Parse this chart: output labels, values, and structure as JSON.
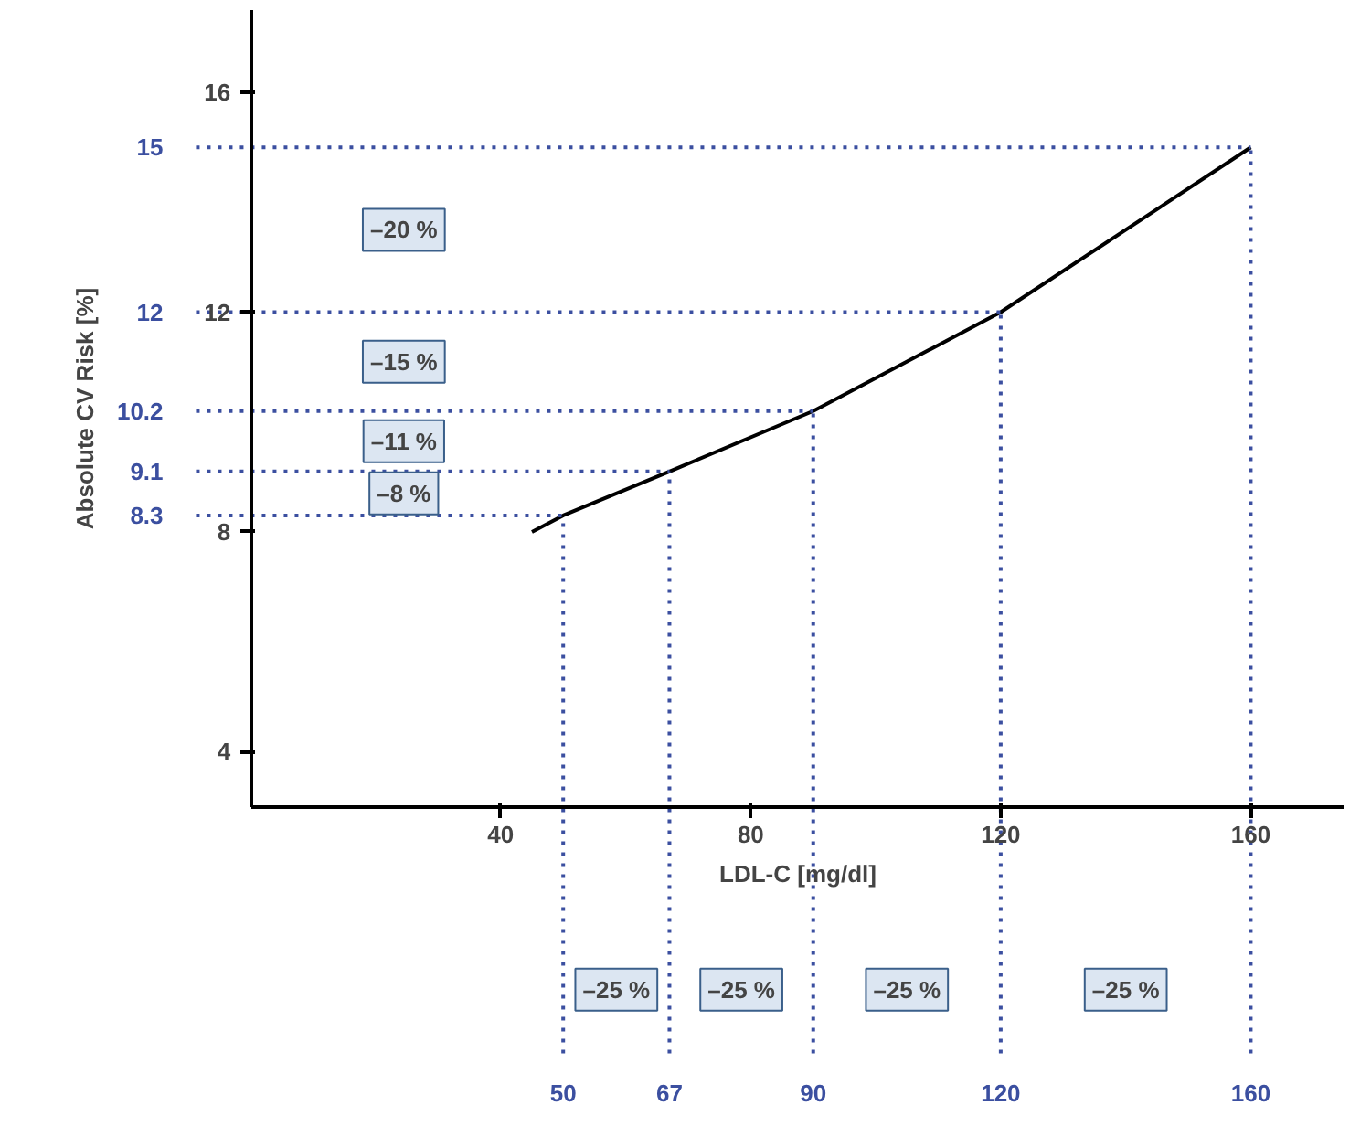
{
  "chart_data": {
    "type": "line",
    "xlabel": "LDL-C [mg/dl]",
    "ylabel": "Absolute CV Risk [%]",
    "series": [
      {
        "x": [
          45,
          50,
          67,
          90,
          120,
          160
        ],
        "values": [
          8.0,
          8.3,
          9.1,
          10.2,
          12,
          15
        ],
        "color": "#000000"
      }
    ],
    "xlim": [
      0,
      175
    ],
    "ylim": [
      3,
      17.5
    ],
    "xticks": [
      40,
      80,
      120,
      160
    ],
    "yticks": [
      4,
      8,
      12,
      16
    ],
    "grid": false,
    "marker": "none",
    "line_style": "solid",
    "ref_lines": [
      {
        "axis": "y",
        "value": 15,
        "label": "15",
        "color": "#3b4fa0",
        "line_style": "dotted"
      },
      {
        "axis": "y",
        "value": 12,
        "label": "12",
        "color": "#3b4fa0",
        "line_style": "dotted"
      },
      {
        "axis": "y",
        "value": 10.2,
        "label": "10.2",
        "color": "#3b4fa0",
        "line_style": "dotted"
      },
      {
        "axis": "y",
        "value": 9.1,
        "label": "9.1",
        "color": "#3b4fa0",
        "line_style": "dotted"
      },
      {
        "axis": "y",
        "value": 8.3,
        "label": "8.3",
        "color": "#3b4fa0",
        "line_style": "dotted"
      },
      {
        "axis": "x",
        "value": 50,
        "label": "50",
        "color": "#3b4fa0",
        "line_style": "dotted"
      },
      {
        "axis": "x",
        "value": 67,
        "label": "67",
        "color": "#3b4fa0",
        "line_style": "dotted"
      },
      {
        "axis": "x",
        "value": 90,
        "label": "90",
        "color": "#3b4fa0",
        "line_style": "dotted"
      },
      {
        "axis": "x",
        "value": 120,
        "label": "120",
        "color": "#3b4fa0",
        "line_style": "dotted"
      },
      {
        "axis": "x",
        "value": 160,
        "label": "160",
        "color": "#3b4fa0",
        "line_style": "dotted"
      }
    ],
    "annotations": [
      "–20 %",
      "–15 %",
      "–11 %",
      "–8 %",
      "–25 %",
      "–25 %",
      "–25 %",
      "–25 %"
    ]
  }
}
